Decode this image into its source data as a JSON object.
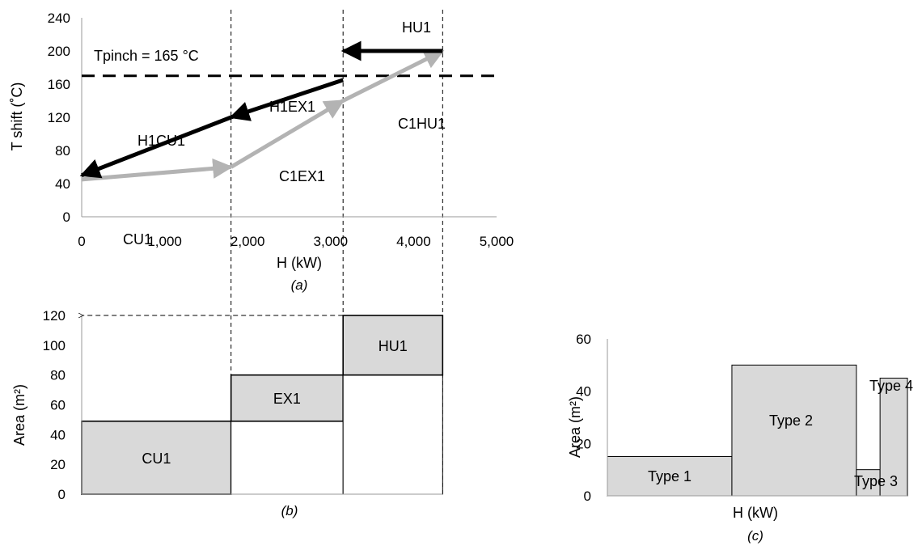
{
  "chart_data": [
    {
      "id": "a",
      "type": "line",
      "caption": "(a)",
      "xlabel": "H (kW)",
      "ylabel": "T shift (˚C)",
      "xlim": [
        0,
        5000
      ],
      "ylim": [
        0,
        240
      ],
      "xticks": [
        "0",
        "1,000",
        "2,000",
        "3,000",
        "4,000",
        "5,000"
      ],
      "yticks": [
        "0",
        "40",
        "80",
        "120",
        "160",
        "200",
        "240"
      ],
      "pinch": {
        "value": 170,
        "label": "Tpinch = 165 °C"
      },
      "vlines": [
        1800,
        3150,
        4350
      ],
      "series": [
        {
          "name": "CU1",
          "color": "#b3b3b3",
          "x": [
            0,
            1800
          ],
          "y": [
            45,
            60
          ]
        },
        {
          "name": "C1EX1",
          "color": "#b3b3b3",
          "x": [
            1800,
            3150
          ],
          "y": [
            60,
            140
          ]
        },
        {
          "name": "C1HU1",
          "color": "#b3b3b3",
          "x": [
            3150,
            4350
          ],
          "y": [
            140,
            200
          ]
        },
        {
          "name": "H1EX1",
          "color": "#000000",
          "x": [
            3150,
            1800
          ],
          "y": [
            165,
            120
          ]
        },
        {
          "name": "H1CU1",
          "color": "#000000",
          "x": [
            1800,
            0
          ],
          "y": [
            120,
            50
          ]
        },
        {
          "name": "HU1",
          "color": "#000000",
          "x": [
            4350,
            3150
          ],
          "y": [
            200,
            200
          ]
        }
      ]
    },
    {
      "id": "b",
      "type": "bar",
      "caption": "(b)",
      "ylabel": "Area (m²)",
      "ylim": [
        0,
        120
      ],
      "yticks": [
        "0",
        "20",
        "40",
        "60",
        "80",
        "100",
        "120"
      ],
      "total_area": 120,
      "bars": [
        {
          "label": "CU1",
          "x0": 0,
          "x1": 1800,
          "y0": 0,
          "y1": 49
        },
        {
          "label": "EX1",
          "x0": 1800,
          "x1": 3150,
          "y0": 49,
          "y1": 80
        },
        {
          "label": "HU1",
          "x0": 3150,
          "x1": 4350,
          "y0": 80,
          "y1": 120
        }
      ]
    },
    {
      "id": "c",
      "type": "bar",
      "caption": "(c)",
      "xlabel": "H (kW)",
      "ylabel": "Area (m²)",
      "ylim": [
        0,
        60
      ],
      "yticks": [
        "0",
        "20",
        "40",
        "60"
      ],
      "bars": [
        {
          "label": "Type 1",
          "x0": 0,
          "x1": 100,
          "value": 15
        },
        {
          "label": "Type 2",
          "x0": 100,
          "x1": 200,
          "value": 50
        },
        {
          "label": "Type 3",
          "x0": 200,
          "x1": 219,
          "value": 10
        },
        {
          "label": "Type 4",
          "x0": 219,
          "x1": 241,
          "value": 45
        }
      ]
    }
  ]
}
